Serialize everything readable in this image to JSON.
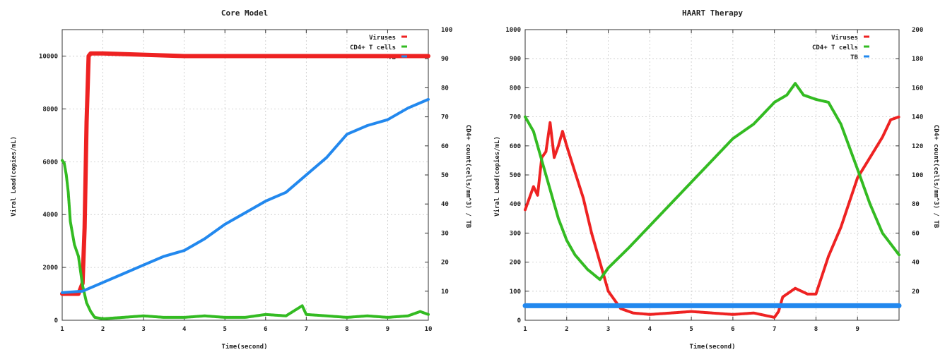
{
  "chart_data": [
    {
      "type": "line",
      "title": "Core Model",
      "xlabel": "Time(second)",
      "ylabel": "Viral Load(copies/mL)",
      "y2label": "CD4+ count(cells/mm^3) / TB",
      "xlim": [
        1,
        10
      ],
      "ylim": [
        0,
        11000
      ],
      "y2lim": [
        0,
        100
      ],
      "x_ticks": [
        "1",
        "2",
        "3",
        "4",
        "5",
        "6",
        "7",
        "8",
        "9",
        "10"
      ],
      "y_ticks": [
        "0",
        "2000",
        "4000",
        "6000",
        "8000",
        "10000"
      ],
      "y2_ticks": [
        "10",
        "20",
        "30",
        "40",
        "50",
        "60",
        "70",
        "80",
        "90",
        "100"
      ],
      "grid": true,
      "legend": "top-right",
      "series": [
        {
          "name": "Viruses",
          "color": "#ee2222",
          "axis": "y",
          "x": [
            1.0,
            1.2,
            1.4,
            1.5,
            1.55,
            1.6,
            1.65,
            1.7,
            2.0,
            3.0,
            4.0,
            5.0,
            6.0,
            7.0,
            8.0,
            9.0,
            10.0
          ],
          "y": [
            1000,
            1000,
            1000,
            1400,
            3500,
            7500,
            10000,
            10100,
            10100,
            10050,
            10000,
            10000,
            10000,
            10000,
            10000,
            10000,
            10000
          ]
        },
        {
          "name": "CD4+ T cells",
          "color": "#33bb22",
          "axis": "y2",
          "x": [
            1.0,
            1.05,
            1.1,
            1.15,
            1.2,
            1.3,
            1.4,
            1.5,
            1.6,
            1.7,
            1.8,
            2.0,
            2.5,
            3.0,
            3.5,
            4.0,
            4.5,
            5.0,
            5.5,
            6.0,
            6.5,
            6.9,
            7.0,
            7.5,
            8.0,
            8.5,
            9.0,
            9.5,
            9.8,
            10.0
          ],
          "y": [
            55,
            54,
            50,
            44,
            34,
            26,
            22,
            12,
            6,
            3,
            1,
            0.5,
            1,
            1.5,
            1,
            1,
            1.5,
            1,
            1,
            2,
            1.5,
            5,
            2,
            1.5,
            1,
            1.5,
            1,
            1.5,
            3,
            2
          ]
        },
        {
          "name": "TB",
          "color": "#2288ee",
          "axis": "y2",
          "x": [
            1.0,
            1.5,
            2.0,
            2.5,
            3.0,
            3.5,
            4.0,
            4.5,
            5.0,
            5.5,
            6.0,
            6.5,
            7.0,
            7.5,
            8.0,
            8.5,
            9.0,
            9.5,
            10.0
          ],
          "y": [
            9.5,
            10,
            13,
            16,
            19,
            22,
            24,
            28,
            33,
            37,
            41,
            44,
            50,
            56,
            64,
            67,
            69,
            73,
            76
          ]
        }
      ]
    },
    {
      "type": "line",
      "title": "HAART Therapy",
      "xlabel": "Time(second)",
      "ylabel": "Viral Load(copies/mL)",
      "y2label": "CD4+ count(cells/mm^3) / TB",
      "xlim": [
        1,
        10
      ],
      "ylim": [
        0,
        1000
      ],
      "y2lim": [
        0,
        200
      ],
      "x_ticks": [
        "1",
        "2",
        "3",
        "4",
        "5",
        "6",
        "7",
        "8",
        "9"
      ],
      "y_ticks": [
        "0",
        "100",
        "200",
        "300",
        "400",
        "500",
        "600",
        "700",
        "800",
        "900",
        "1000"
      ],
      "y2_ticks": [
        "20",
        "40",
        "60",
        "80",
        "100",
        "120",
        "140",
        "160",
        "180",
        "200"
      ],
      "grid": true,
      "legend": "top-right",
      "series": [
        {
          "name": "Viruses",
          "color": "#ee2222",
          "axis": "y",
          "x": [
            1.0,
            1.1,
            1.2,
            1.3,
            1.4,
            1.5,
            1.6,
            1.7,
            1.8,
            1.9,
            2.0,
            2.2,
            2.4,
            2.6,
            2.8,
            3.0,
            3.3,
            3.6,
            4.0,
            4.5,
            5.0,
            5.5,
            6.0,
            6.5,
            7.0,
            7.1,
            7.2,
            7.5,
            7.8,
            8.0,
            8.3,
            8.6,
            9.0,
            9.3,
            9.6,
            9.8,
            10.0
          ],
          "y": [
            380,
            420,
            460,
            430,
            560,
            580,
            680,
            560,
            600,
            650,
            600,
            510,
            420,
            300,
            200,
            100,
            40,
            25,
            20,
            25,
            30,
            25,
            20,
            25,
            10,
            30,
            80,
            110,
            90,
            90,
            220,
            320,
            490,
            560,
            630,
            690,
            700
          ]
        },
        {
          "name": "CD4+ T cells",
          "color": "#33bb22",
          "axis": "y2",
          "x": [
            1.0,
            1.2,
            1.4,
            1.6,
            1.8,
            2.0,
            2.2,
            2.5,
            2.8,
            3.0,
            3.5,
            4.0,
            4.5,
            5.0,
            5.5,
            6.0,
            6.5,
            7.0,
            7.3,
            7.5,
            7.7,
            8.0,
            8.3,
            8.6,
            9.0,
            9.3,
            9.6,
            10.0
          ],
          "y": [
            140,
            130,
            110,
            90,
            70,
            55,
            45,
            35,
            28,
            36,
            50,
            65,
            80,
            95,
            110,
            125,
            135,
            150,
            155,
            163,
            155,
            152,
            150,
            135,
            104,
            80,
            60,
            45
          ]
        },
        {
          "name": "TB",
          "color": "#2288ee",
          "axis": "y2",
          "x": [
            1.0,
            10.0
          ],
          "y": [
            10,
            10
          ]
        }
      ]
    }
  ]
}
